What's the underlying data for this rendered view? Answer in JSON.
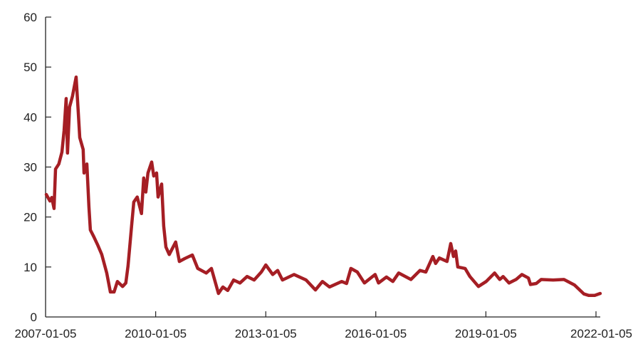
{
  "chart_data": {
    "type": "line",
    "title": "",
    "xlabel": "",
    "ylabel": "",
    "ylim": [
      0,
      60
    ],
    "xlim": [
      "2007-01-05",
      "2022-02-16"
    ],
    "grid": false,
    "line_color": "#A51E24",
    "y_ticks": [
      "0",
      "10",
      "20",
      "30",
      "40",
      "50",
      "60"
    ],
    "x_ticks": [
      "2007-01-05",
      "2010-01-05",
      "2013-01-05",
      "2016-01-05",
      "2019-01-05",
      "2022-01-05"
    ],
    "series": [
      {
        "points": [
          [
            "2007-01-12",
            24.5
          ],
          [
            "2007-02-17",
            23.2
          ],
          [
            "2007-03-08",
            23.9
          ],
          [
            "2007-03-30",
            21.7
          ],
          [
            "2007-04-14",
            29.6
          ],
          [
            "2007-05-17",
            30.6
          ],
          [
            "2007-06-17",
            33.0
          ],
          [
            "2007-07-08",
            37.3
          ],
          [
            "2007-07-29",
            43.7
          ],
          [
            "2007-08-11",
            32.8
          ],
          [
            "2007-09-01",
            42.0
          ],
          [
            "2007-09-30",
            44.2
          ],
          [
            "2007-11-05",
            48.0
          ],
          [
            "2007-11-26",
            41.0
          ],
          [
            "2007-12-11",
            35.9
          ],
          [
            "2008-01-14",
            33.5
          ],
          [
            "2008-01-23",
            28.8
          ],
          [
            "2008-02-20",
            30.6
          ],
          [
            "2008-03-12",
            22.0
          ],
          [
            "2008-03-26",
            17.4
          ],
          [
            "2008-04-30",
            16.0
          ],
          [
            "2008-06-05",
            14.5
          ],
          [
            "2008-07-17",
            12.5
          ],
          [
            "2008-09-05",
            8.8
          ],
          [
            "2008-10-11",
            5.0
          ],
          [
            "2008-11-17",
            5.0
          ],
          [
            "2008-12-20",
            7.1
          ],
          [
            "2009-02-10",
            6.1
          ],
          [
            "2009-03-14",
            6.8
          ],
          [
            "2009-04-05",
            10.2
          ],
          [
            "2009-05-10",
            18.2
          ],
          [
            "2009-06-01",
            23.0
          ],
          [
            "2009-07-05",
            24.0
          ],
          [
            "2009-08-17",
            20.7
          ],
          [
            "2009-09-08",
            27.8
          ],
          [
            "2009-09-29",
            25.0
          ],
          [
            "2009-10-20",
            28.8
          ],
          [
            "2009-11-26",
            31.0
          ],
          [
            "2009-12-17",
            28.2
          ],
          [
            "2010-01-14",
            28.8
          ],
          [
            "2010-01-29",
            24.0
          ],
          [
            "2010-03-05",
            26.6
          ],
          [
            "2010-03-26",
            18.2
          ],
          [
            "2010-04-17",
            14.0
          ],
          [
            "2010-05-20",
            12.5
          ],
          [
            "2010-07-23",
            15.0
          ],
          [
            "2010-08-29",
            11.1
          ],
          [
            "2010-10-23",
            11.7
          ],
          [
            "2011-01-05",
            12.4
          ],
          [
            "2011-02-28",
            9.7
          ],
          [
            "2011-05-23",
            8.8
          ],
          [
            "2011-07-14",
            9.7
          ],
          [
            "2011-09-22",
            4.7
          ],
          [
            "2011-11-05",
            6.0
          ],
          [
            "2011-12-23",
            5.3
          ],
          [
            "2012-02-20",
            7.4
          ],
          [
            "2012-04-23",
            6.8
          ],
          [
            "2012-07-03",
            8.1
          ],
          [
            "2012-09-11",
            7.4
          ],
          [
            "2012-11-22",
            9.0
          ],
          [
            "2013-01-05",
            10.4
          ],
          [
            "2013-03-15",
            8.5
          ],
          [
            "2013-05-03",
            9.3
          ],
          [
            "2013-06-20",
            7.4
          ],
          [
            "2013-10-14",
            8.5
          ],
          [
            "2014-02-10",
            7.4
          ],
          [
            "2014-05-14",
            5.4
          ],
          [
            "2014-07-23",
            7.1
          ],
          [
            "2014-10-01",
            6.0
          ],
          [
            "2015-01-31",
            7.1
          ],
          [
            "2015-03-20",
            6.7
          ],
          [
            "2015-05-02",
            9.7
          ],
          [
            "2015-07-05",
            9.0
          ],
          [
            "2015-09-14",
            6.8
          ],
          [
            "2015-12-29",
            8.5
          ],
          [
            "2016-02-01",
            6.8
          ],
          [
            "2016-04-20",
            8.0
          ],
          [
            "2016-06-23",
            7.1
          ],
          [
            "2016-08-20",
            8.8
          ],
          [
            "2016-12-20",
            7.5
          ],
          [
            "2017-03-20",
            9.3
          ],
          [
            "2017-05-17",
            9.0
          ],
          [
            "2017-07-26",
            12.1
          ],
          [
            "2017-08-23",
            10.7
          ],
          [
            "2017-09-29",
            11.8
          ],
          [
            "2017-12-14",
            11.1
          ],
          [
            "2018-01-20",
            14.7
          ],
          [
            "2018-02-17",
            12.1
          ],
          [
            "2018-03-10",
            13.2
          ],
          [
            "2018-03-31",
            10.0
          ],
          [
            "2018-06-12",
            9.7
          ],
          [
            "2018-07-30",
            8.1
          ],
          [
            "2018-10-23",
            6.1
          ],
          [
            "2019-01-08",
            7.1
          ],
          [
            "2019-04-02",
            8.8
          ],
          [
            "2019-05-23",
            7.5
          ],
          [
            "2019-06-26",
            8.1
          ],
          [
            "2019-08-23",
            6.8
          ],
          [
            "2019-11-01",
            7.5
          ],
          [
            "2019-12-29",
            8.5
          ],
          [
            "2020-03-03",
            7.8
          ],
          [
            "2020-03-24",
            6.5
          ],
          [
            "2020-05-20",
            6.7
          ],
          [
            "2020-07-08",
            7.5
          ],
          [
            "2020-11-05",
            7.4
          ],
          [
            "2021-02-20",
            7.5
          ],
          [
            "2021-06-05",
            6.4
          ],
          [
            "2021-09-07",
            4.6
          ],
          [
            "2021-10-26",
            4.3
          ],
          [
            "2021-12-23",
            4.3
          ],
          [
            "2022-02-16",
            4.7
          ]
        ]
      }
    ]
  }
}
